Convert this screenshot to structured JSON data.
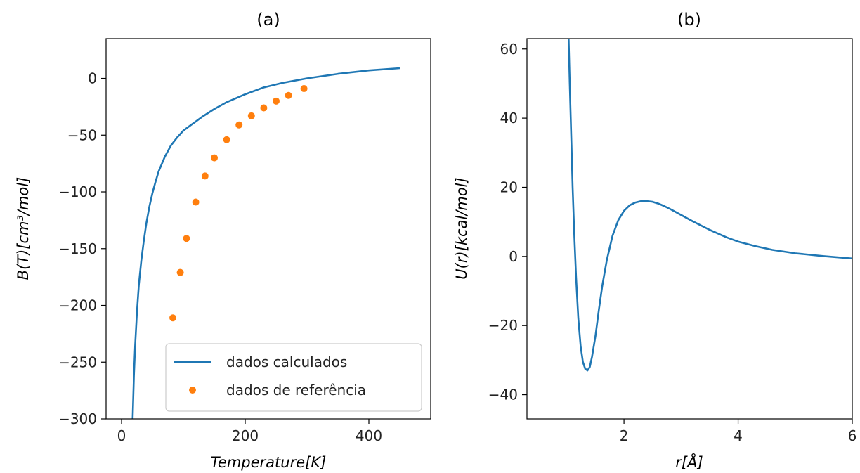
{
  "chart_data": [
    {
      "type": "line",
      "title": "(a)",
      "xlabel": "Temperature[K]",
      "ylabel": "B(T)[cm³/mol]",
      "xlim": [
        -25,
        500
      ],
      "ylim": [
        -300,
        35
      ],
      "xticks": [
        0,
        200,
        400
      ],
      "yticks": [
        0,
        -50,
        -100,
        -150,
        -200,
        -250,
        -300
      ],
      "xtick_labels": [
        "0",
        "200",
        "400"
      ],
      "ytick_labels": [
        "0",
        "−50",
        "−100",
        "−150",
        "−200",
        "−250",
        "−300"
      ],
      "legend_position": "bottom-right",
      "series": [
        {
          "name": "dados calculados",
          "style": "line",
          "color": "#1f77b4",
          "x": [
            18,
            20,
            22,
            25,
            28,
            32,
            36,
            40,
            45,
            50,
            55,
            60,
            70,
            80,
            90,
            100,
            110,
            120,
            130,
            150,
            170,
            200,
            230,
            260,
            300,
            350,
            400,
            450
          ],
          "y": [
            -300,
            -262,
            -235,
            -205,
            -182,
            -160,
            -143,
            -128,
            -113,
            -101,
            -91,
            -82,
            -69,
            -59,
            -52,
            -46,
            -42,
            -38,
            -34,
            -27,
            -21,
            -14,
            -8,
            -4,
            0,
            4,
            7,
            9
          ]
        },
        {
          "name": "dados de referência",
          "style": "scatter",
          "color": "#ff7f0e",
          "x": [
            83,
            95,
            105,
            120,
            135,
            150,
            170,
            190,
            210,
            230,
            250,
            270,
            295
          ],
          "y": [
            -211,
            -171,
            -141,
            -109,
            -86,
            -70,
            -54,
            -41,
            -33,
            -26,
            -20,
            -15,
            -9
          ]
        }
      ]
    },
    {
      "type": "line",
      "title": "(b)",
      "xlabel": "r[Å]",
      "ylabel": "U(r)[kcal/mol]",
      "xlim": [
        0.3,
        6
      ],
      "ylim": [
        -47,
        63
      ],
      "xticks": [
        2,
        4,
        6
      ],
      "yticks": [
        60,
        40,
        20,
        0,
        -20,
        -40
      ],
      "xtick_labels": [
        "2",
        "4",
        "6"
      ],
      "ytick_labels": [
        "60",
        "40",
        "20",
        "0",
        "−20",
        "−40"
      ],
      "series": [
        {
          "color": "#1f77b4",
          "x": [
            1.03,
            1.05,
            1.08,
            1.1,
            1.13,
            1.16,
            1.2,
            1.24,
            1.28,
            1.32,
            1.36,
            1.4,
            1.44,
            1.5,
            1.56,
            1.62,
            1.7,
            1.8,
            1.9,
            2.0,
            2.1,
            2.2,
            2.3,
            2.4,
            2.5,
            2.6,
            2.7,
            2.8,
            3.0,
            3.2,
            3.5,
            3.8,
            4.0,
            4.3,
            4.6,
            5.0,
            5.5,
            6.0
          ],
          "y": [
            63,
            50,
            32,
            20,
            6,
            -6,
            -18,
            -26,
            -30.5,
            -32.5,
            -33,
            -32,
            -29,
            -23,
            -15.5,
            -8.5,
            -1,
            6,
            10.5,
            13.2,
            14.8,
            15.6,
            16,
            16,
            15.8,
            15.3,
            14.6,
            13.8,
            12,
            10.2,
            7.7,
            5.5,
            4.3,
            3.0,
            1.9,
            0.9,
            0.1,
            -0.6
          ]
        }
      ]
    }
  ]
}
